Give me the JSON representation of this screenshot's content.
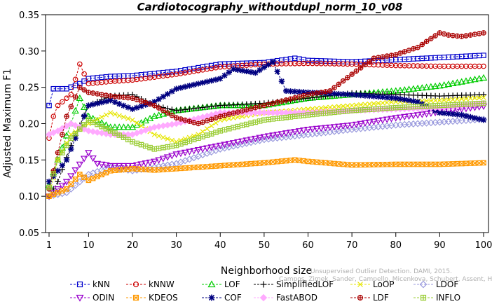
{
  "watermark": {
    "line1": "Unsupervised Outlier Detection. DAMI, 2015.",
    "line2": "Campos, Zimek, Sander, Campello, Micenkova, Schubert, Assent, Houle"
  },
  "chart_data": {
    "type": "line",
    "title": "Cardiotocography_withoutdupl_norm_10_v08",
    "xlabel": "Neighborhood size",
    "ylabel": "Adjusted Maximum F1",
    "xlim": [
      1,
      100
    ],
    "ylim": [
      0.05,
      0.35
    ],
    "xticks": [
      1,
      10,
      20,
      30,
      40,
      50,
      60,
      70,
      80,
      90,
      100
    ],
    "yticks": [
      0.05,
      0.1,
      0.15,
      0.2,
      0.25,
      0.3,
      0.35
    ],
    "grid": false,
    "legend_position": "bottom",
    "series": [
      {
        "name": "kNN",
        "color": "#0000cc",
        "marker": "square",
        "points": [
          [
            1,
            0.225
          ],
          [
            2,
            0.248
          ],
          [
            5,
            0.248
          ],
          [
            8,
            0.255
          ],
          [
            10,
            0.262
          ],
          [
            15,
            0.265
          ],
          [
            20,
            0.266
          ],
          [
            30,
            0.272
          ],
          [
            40,
            0.282
          ],
          [
            50,
            0.284
          ],
          [
            57,
            0.29
          ],
          [
            60,
            0.287
          ],
          [
            70,
            0.285
          ],
          [
            80,
            0.288
          ],
          [
            90,
            0.291
          ],
          [
            100,
            0.294
          ]
        ]
      },
      {
        "name": "kNNW",
        "color": "#cc0000",
        "marker": "circle",
        "points": [
          [
            1,
            0.18
          ],
          [
            2,
            0.21
          ],
          [
            3,
            0.225
          ],
          [
            6,
            0.24
          ],
          [
            8,
            0.282
          ],
          [
            10,
            0.255
          ],
          [
            15,
            0.258
          ],
          [
            20,
            0.26
          ],
          [
            30,
            0.268
          ],
          [
            40,
            0.278
          ],
          [
            50,
            0.282
          ],
          [
            60,
            0.283
          ],
          [
            70,
            0.282
          ],
          [
            80,
            0.28
          ],
          [
            90,
            0.279
          ],
          [
            100,
            0.279
          ]
        ]
      },
      {
        "name": "LOF",
        "color": "#00cc00",
        "marker": "triangle-up",
        "points": [
          [
            1,
            0.115
          ],
          [
            3,
            0.15
          ],
          [
            6,
            0.2
          ],
          [
            8,
            0.235
          ],
          [
            10,
            0.21
          ],
          [
            15,
            0.195
          ],
          [
            20,
            0.195
          ],
          [
            25,
            0.21
          ],
          [
            30,
            0.218
          ],
          [
            40,
            0.225
          ],
          [
            50,
            0.225
          ],
          [
            60,
            0.235
          ],
          [
            70,
            0.24
          ],
          [
            80,
            0.245
          ],
          [
            90,
            0.252
          ],
          [
            100,
            0.263
          ]
        ]
      },
      {
        "name": "SimplifiedLOF",
        "color": "#000000",
        "marker": "plus",
        "points": [
          [
            1,
            0.1
          ],
          [
            3,
            0.12
          ],
          [
            6,
            0.17
          ],
          [
            10,
            0.225
          ],
          [
            15,
            0.238
          ],
          [
            20,
            0.24
          ],
          [
            25,
            0.225
          ],
          [
            30,
            0.218
          ],
          [
            40,
            0.225
          ],
          [
            50,
            0.228
          ],
          [
            60,
            0.235
          ],
          [
            70,
            0.242
          ],
          [
            80,
            0.24
          ],
          [
            90,
            0.238
          ],
          [
            100,
            0.24
          ]
        ]
      },
      {
        "name": "LoOP",
        "color": "#e6e600",
        "marker": "x",
        "points": [
          [
            1,
            0.1
          ],
          [
            3,
            0.15
          ],
          [
            6,
            0.185
          ],
          [
            10,
            0.2
          ],
          [
            15,
            0.215
          ],
          [
            20,
            0.205
          ],
          [
            25,
            0.185
          ],
          [
            30,
            0.175
          ],
          [
            35,
            0.185
          ],
          [
            40,
            0.205
          ],
          [
            50,
            0.215
          ],
          [
            60,
            0.22
          ],
          [
            70,
            0.225
          ],
          [
            80,
            0.23
          ],
          [
            90,
            0.232
          ],
          [
            100,
            0.236
          ]
        ]
      },
      {
        "name": "LDOF",
        "color": "#9999dd",
        "marker": "diamond",
        "points": [
          [
            1,
            0.1
          ],
          [
            5,
            0.105
          ],
          [
            10,
            0.13
          ],
          [
            15,
            0.14
          ],
          [
            20,
            0.135
          ],
          [
            25,
            0.14
          ],
          [
            30,
            0.145
          ],
          [
            35,
            0.155
          ],
          [
            40,
            0.165
          ],
          [
            50,
            0.178
          ],
          [
            60,
            0.185
          ],
          [
            70,
            0.192
          ],
          [
            80,
            0.198
          ],
          [
            90,
            0.202
          ],
          [
            100,
            0.206
          ]
        ]
      },
      {
        "name": "ODIN",
        "color": "#9900cc",
        "marker": "triangle-down",
        "points": [
          [
            1,
            0.1
          ],
          [
            5,
            0.12
          ],
          [
            10,
            0.16
          ],
          [
            12,
            0.145
          ],
          [
            15,
            0.142
          ],
          [
            20,
            0.142
          ],
          [
            25,
            0.148
          ],
          [
            30,
            0.158
          ],
          [
            40,
            0.17
          ],
          [
            50,
            0.182
          ],
          [
            60,
            0.192
          ],
          [
            70,
            0.198
          ],
          [
            80,
            0.208
          ],
          [
            90,
            0.216
          ],
          [
            100,
            0.224
          ]
        ]
      },
      {
        "name": "KDEOS",
        "color": "#ff9900",
        "marker": "square-x",
        "points": [
          [
            1,
            0.1
          ],
          [
            5,
            0.11
          ],
          [
            8,
            0.13
          ],
          [
            10,
            0.122
          ],
          [
            15,
            0.135
          ],
          [
            20,
            0.138
          ],
          [
            25,
            0.136
          ],
          [
            30,
            0.138
          ],
          [
            40,
            0.142
          ],
          [
            50,
            0.146
          ],
          [
            57,
            0.15
          ],
          [
            60,
            0.148
          ],
          [
            66,
            0.145
          ],
          [
            70,
            0.143
          ],
          [
            80,
            0.144
          ],
          [
            90,
            0.144
          ],
          [
            100,
            0.146
          ]
        ]
      },
      {
        "name": "COF",
        "color": "#000080",
        "marker": "asterisk",
        "points": [
          [
            1,
            0.12
          ],
          [
            5,
            0.15
          ],
          [
            10,
            0.225
          ],
          [
            15,
            0.232
          ],
          [
            20,
            0.22
          ],
          [
            25,
            0.23
          ],
          [
            30,
            0.248
          ],
          [
            35,
            0.255
          ],
          [
            40,
            0.262
          ],
          [
            43,
            0.275
          ],
          [
            48,
            0.27
          ],
          [
            52,
            0.285
          ],
          [
            55,
            0.245
          ],
          [
            60,
            0.243
          ],
          [
            70,
            0.24
          ],
          [
            80,
            0.235
          ],
          [
            85,
            0.23
          ],
          [
            90,
            0.215
          ],
          [
            95,
            0.212
          ],
          [
            100,
            0.205
          ]
        ]
      },
      {
        "name": "FastABOD",
        "color": "#ffaaff",
        "marker": "diamond-filled",
        "points": [
          [
            1,
            0.185
          ],
          [
            3,
            0.19
          ],
          [
            6,
            0.2
          ],
          [
            10,
            0.19
          ],
          [
            15,
            0.185
          ],
          [
            20,
            0.185
          ],
          [
            25,
            0.195
          ],
          [
            30,
            0.2
          ],
          [
            40,
            0.215
          ],
          [
            50,
            0.215
          ],
          [
            60,
            0.215
          ],
          [
            70,
            0.218
          ],
          [
            80,
            0.22
          ],
          [
            90,
            0.222
          ],
          [
            100,
            0.228
          ]
        ]
      },
      {
        "name": "LDF",
        "color": "#aa0000",
        "marker": "circle-plus",
        "points": [
          [
            1,
            0.11
          ],
          [
            3,
            0.16
          ],
          [
            5,
            0.21
          ],
          [
            8,
            0.25
          ],
          [
            10,
            0.243
          ],
          [
            15,
            0.238
          ],
          [
            20,
            0.235
          ],
          [
            25,
            0.225
          ],
          [
            30,
            0.208
          ],
          [
            35,
            0.2
          ],
          [
            40,
            0.21
          ],
          [
            50,
            0.225
          ],
          [
            60,
            0.24
          ],
          [
            65,
            0.245
          ],
          [
            70,
            0.268
          ],
          [
            75,
            0.29
          ],
          [
            80,
            0.295
          ],
          [
            85,
            0.305
          ],
          [
            90,
            0.325
          ],
          [
            92,
            0.322
          ],
          [
            95,
            0.32
          ],
          [
            100,
            0.325
          ]
        ]
      },
      {
        "name": "INFLO",
        "color": "#99cc33",
        "marker": "hash",
        "points": [
          [
            1,
            0.112
          ],
          [
            3,
            0.15
          ],
          [
            6,
            0.18
          ],
          [
            10,
            0.205
          ],
          [
            15,
            0.19
          ],
          [
            20,
            0.175
          ],
          [
            25,
            0.165
          ],
          [
            30,
            0.17
          ],
          [
            35,
            0.18
          ],
          [
            40,
            0.19
          ],
          [
            50,
            0.205
          ],
          [
            60,
            0.212
          ],
          [
            70,
            0.218
          ],
          [
            80,
            0.222
          ],
          [
            90,
            0.225
          ],
          [
            100,
            0.228
          ]
        ]
      }
    ],
    "legend_layout": [
      [
        "kNN",
        "kNNW",
        "LOF",
        "SimplifiedLOF",
        "LoOP",
        "LDOF"
      ],
      [
        "ODIN",
        "KDEOS",
        "COF",
        "FastABOD",
        "LDF",
        "INFLO"
      ]
    ]
  }
}
